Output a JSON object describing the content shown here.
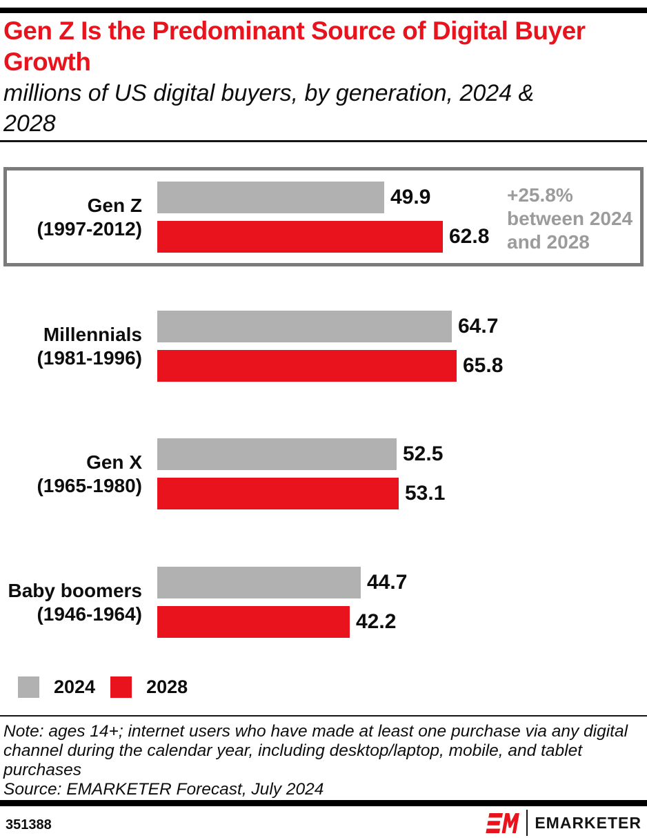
{
  "header": {
    "title": "Gen Z Is the Predominant Source of Digital Buyer Growth",
    "title_lines": [
      "Gen Z Is the Predominant Source of Digital Buyer",
      "Growth"
    ],
    "subtitle": "millions of US digital buyers, by generation, 2024 & 2028",
    "subtitle_lines": [
      "millions of US digital buyers, by generation, 2024 &",
      "2028"
    ]
  },
  "colors": {
    "accent_red": "#E9131D",
    "bar_gray": "#B1B1B1",
    "annotation_gray": "#9B9B9B",
    "highlight_border_gray": "#7B7B7B",
    "black": "#000000"
  },
  "chart_data": {
    "type": "bar",
    "orientation": "horizontal",
    "title": "Gen Z Is the Predominant Source of Digital Buyer Growth",
    "subtitle": "millions of US digital buyers, by generation, 2024 & 2028",
    "unit": "millions of US digital buyers",
    "categories": [
      "Gen Z (1997-2012)",
      "Millennials (1981-1996)",
      "Gen X (1965-1980)",
      "Baby boomers (1946-1964)"
    ],
    "series": [
      {
        "name": "2024",
        "color": "#B1B1B1",
        "values": [
          49.9,
          64.7,
          52.5,
          44.7
        ]
      },
      {
        "name": "2028",
        "color": "#E9131D",
        "values": [
          62.8,
          65.8,
          53.1,
          42.2
        ]
      }
    ],
    "groups": [
      {
        "name": "Gen Z",
        "years": "(1997-2012)",
        "highlighted": true,
        "annotation_lines": [
          "+25.8%",
          "between 2024",
          "and 2028"
        ]
      },
      {
        "name": "Millennials",
        "years": "(1981-1996)",
        "highlighted": false
      },
      {
        "name": "Gen X",
        "years": "(1965-1980)",
        "highlighted": false
      },
      {
        "name": "Baby boomers",
        "years": "(1946-1964)",
        "highlighted": false
      }
    ],
    "value_labels": true,
    "axis": "none",
    "grid": false,
    "legend_position": "bottom-left",
    "x_range_units": [
      0,
      66
    ]
  },
  "legend": [
    {
      "label": "2024",
      "color": "#B1B1B1"
    },
    {
      "label": "2028",
      "color": "#E9131D"
    }
  ],
  "note_lines": [
    "Note: ages 14+; internet users who have made at least one purchase via any digital",
    "channel during the calendar year, including desktop/laptop, mobile, and tablet",
    "purchases"
  ],
  "note": "Note: ages 14+; internet users who have made at least one purchase via any digital channel during the calendar year, including desktop/laptop, mobile, and tablet purchases",
  "source": "Source: EMARKETER Forecast, July 2024",
  "footer": {
    "chart_id": "351388",
    "logo_monogram": "EM",
    "logo_wordmark": "EMARKETER"
  }
}
